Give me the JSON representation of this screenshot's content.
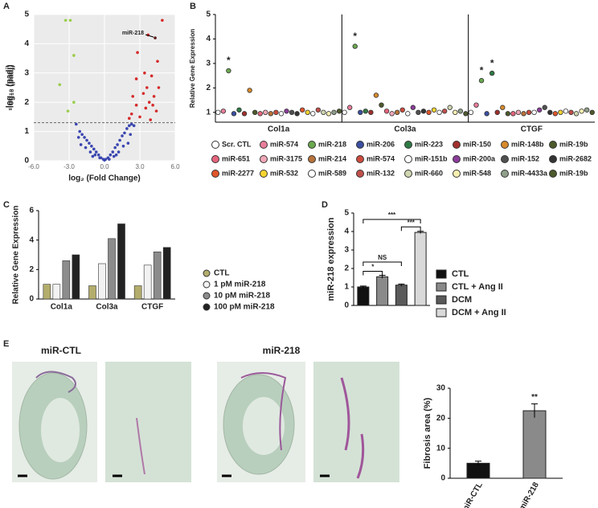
{
  "chart_data": [
    {
      "type": "scatter",
      "panel": "A",
      "xlabel": "log₂ (Fold Change)",
      "ylabel": "-log₁₀ (padj)",
      "xlim": [
        -6,
        6
      ],
      "xticks": [
        {
          "value": -6,
          "label": "-6.0"
        },
        {
          "value": -3,
          "label": "-3.0"
        },
        {
          "value": 0,
          "label": "0.0"
        },
        {
          "value": 3,
          "label": "3.0"
        },
        {
          "value": 6,
          "label": "6.0"
        }
      ],
      "ylim": [
        0,
        5
      ],
      "yticks": [
        0,
        1,
        2,
        3,
        4,
        5
      ],
      "grid": true,
      "hline": 1.3,
      "series": [
        {
          "color": "#3b46b0",
          "x": [
            -2.4,
            -2.1,
            -1.9,
            -1.7,
            -1.5,
            -1.3,
            -1.1,
            -0.9,
            -0.7,
            -0.5,
            -0.3,
            -0.1,
            0.1,
            0.3,
            0.5,
            0.7,
            0.9,
            1.1,
            1.3,
            1.5,
            1.7,
            1.9,
            2.1,
            2.3,
            2.5,
            2.0,
            1.6,
            1.2,
            0.8,
            0.4,
            0,
            -0.4,
            -0.8,
            -1.2,
            -1.6,
            -2.0,
            -1.0,
            1.0,
            2.2,
            -2.2
          ],
          "y": [
            1.25,
            1.0,
            0.9,
            0.8,
            0.7,
            0.6,
            0.5,
            0.4,
            0.3,
            0.2,
            0.1,
            0.05,
            0.05,
            0.1,
            0.2,
            0.3,
            0.45,
            0.55,
            0.7,
            0.85,
            0.95,
            1.1,
            1.2,
            1.25,
            1.2,
            0.6,
            0.5,
            0.3,
            0.15,
            0.05,
            0.02,
            0.1,
            0.2,
            0.3,
            0.45,
            0.55,
            0.15,
            0.2,
            0.9,
            0.8
          ]
        },
        {
          "color": "#9acd4a",
          "x": [
            -3.3,
            -2.9,
            -2.6,
            -3.8,
            -2.6,
            -3.1
          ],
          "y": [
            4.8,
            4.8,
            3.6,
            2.6,
            2.0,
            1.7
          ]
        },
        {
          "color": "#d62a2a",
          "x": [
            4.9,
            3.7,
            2.8,
            4.5,
            3.4,
            4.0,
            2.7,
            3.6,
            4.6,
            3.3,
            2.4,
            3.8,
            4.2,
            2.7,
            3.5,
            4.4,
            2.3,
            3.0,
            3.9,
            2.1,
            4.1
          ],
          "y": [
            4.8,
            4.3,
            3.7,
            3.4,
            3.0,
            2.9,
            2.8,
            2.5,
            2.5,
            2.3,
            2.2,
            2.0,
            2.2,
            1.9,
            1.8,
            1.7,
            1.6,
            1.5,
            1.4,
            1.45,
            1.9
          ]
        },
        {
          "color": "#5a1a1a",
          "x": [
            4.3
          ],
          "y": [
            4.2
          ]
        }
      ],
      "annotation": {
        "text": "miR-218",
        "x": 4.3,
        "y": 4.2
      }
    },
    {
      "type": "strip",
      "panel": "B",
      "ylabel": "Relative Gene Expression",
      "categories": [
        "Col1a",
        "Col3a",
        "CTGF"
      ],
      "ylim": [
        0.6,
        5
      ],
      "yticks": [
        1,
        2,
        3,
        4,
        5
      ],
      "series": [
        {
          "name": "Scr. CTL",
          "color": "#ffffff",
          "values": [
            1.0,
            1.0,
            1.0
          ]
        },
        {
          "name": "miR-574",
          "color": "#e87e9a",
          "values": [
            1.05,
            1.2,
            1.3
          ]
        },
        {
          "name": "miR-218",
          "color": "#6aa84f",
          "values": [
            2.7,
            3.7,
            2.3
          ]
        },
        {
          "name": "miR-206",
          "color": "#3a4fa0",
          "values": [
            0.95,
            1.0,
            0.95
          ]
        },
        {
          "name": "miR-223",
          "color": "#2f7a45",
          "values": [
            1.1,
            1.05,
            2.6
          ]
        },
        {
          "name": "miR-150",
          "color": "#a0302d",
          "values": [
            0.95,
            1.0,
            1.0
          ]
        },
        {
          "name": "miR-148b",
          "color": "#d88a2a",
          "values": [
            1.9,
            1.7,
            1.2
          ]
        },
        {
          "name": "miR-19b",
          "color": "#4c5a2c",
          "values": [
            1.0,
            1.3,
            0.95
          ]
        },
        {
          "name": "miR-651",
          "color": "#e5647c",
          "values": [
            0.95,
            1.05,
            0.95
          ]
        },
        {
          "name": "miR-3175",
          "color": "#f0a7b8",
          "values": [
            1.0,
            0.95,
            1.0
          ]
        },
        {
          "name": "miR-214",
          "color": "#b8733a",
          "values": [
            0.95,
            1.0,
            0.95
          ]
        },
        {
          "name": "miR-574",
          "color": "#cc4b3d",
          "values": [
            1.0,
            1.1,
            1.0
          ]
        },
        {
          "name": "miR-151b",
          "color": "#ffffff",
          "values": [
            0.95,
            0.95,
            1.0
          ]
        },
        {
          "name": "miR-200a",
          "color": "#8a3c9a",
          "values": [
            1.05,
            1.2,
            1.1
          ]
        },
        {
          "name": "miR-152",
          "color": "#505050",
          "values": [
            1.0,
            1.0,
            1.2
          ]
        },
        {
          "name": "miR-2682",
          "color": "#333333",
          "values": [
            0.95,
            1.05,
            1.0
          ]
        },
        {
          "name": "miR-2277",
          "color": "#e0552a",
          "values": [
            1.1,
            1.0,
            0.95
          ]
        },
        {
          "name": "miR-532",
          "color": "#f5d430",
          "values": [
            1.0,
            1.1,
            1.0
          ]
        },
        {
          "name": "miR-589",
          "color": "#ffffff",
          "values": [
            0.95,
            1.0,
            1.05
          ]
        },
        {
          "name": "miR-132",
          "color": "#c0504a",
          "values": [
            1.1,
            1.05,
            1.0
          ]
        },
        {
          "name": "miR-660",
          "color": "#cfd6b0",
          "values": [
            1.0,
            1.2,
            0.95
          ]
        },
        {
          "name": "miR-548",
          "color": "#f6efb0",
          "values": [
            0.95,
            1.0,
            1.05
          ]
        },
        {
          "name": "miR-4433a",
          "color": "#8f9f8a",
          "values": [
            1.0,
            1.05,
            1.1
          ]
        },
        {
          "name": "miR-19b",
          "color": "#4c5a2c",
          "values": [
            1.05,
            0.95,
            1.0
          ]
        }
      ],
      "annotations": [
        {
          "text": "*",
          "series": 2,
          "category": 0
        },
        {
          "text": "*",
          "series": 2,
          "category": 1
        },
        {
          "text": "*",
          "series": 2,
          "category": 2
        },
        {
          "text": "*",
          "series": 4,
          "category": 2
        }
      ]
    },
    {
      "type": "grouped-bar",
      "panel": "C",
      "ylabel": "Relative Gene Expression",
      "categories": [
        "Col1a",
        "Col3a",
        "CTGF"
      ],
      "ylim": [
        0,
        6
      ],
      "yticks": [
        0,
        2,
        4,
        6
      ],
      "series": [
        {
          "name": "CTL",
          "color": "#b3ad6c",
          "values": [
            1.0,
            0.9,
            0.9
          ]
        },
        {
          "name": "1 pM miR-218",
          "color": "#f2f2f2",
          "values": [
            1.0,
            2.4,
            2.3
          ]
        },
        {
          "name": "10 pM miR-218",
          "color": "#8c8c8c",
          "values": [
            2.6,
            4.1,
            3.2
          ]
        },
        {
          "name": "100 pM miR-218",
          "color": "#222222",
          "values": [
            3.0,
            5.1,
            3.5
          ]
        }
      ]
    },
    {
      "type": "bar",
      "panel": "D",
      "ylabel": "miR-218 expression",
      "categories": [
        "CTL",
        "CTL + Ang II",
        "DCM",
        "DCM + Ang II"
      ],
      "values": [
        1.0,
        1.55,
        1.1,
        3.95
      ],
      "errors": [
        0.05,
        0.08,
        0.06,
        0.06
      ],
      "colors": [
        "#111111",
        "#8a8a8a",
        "#5a5a5a",
        "#d9d9d9"
      ],
      "ylim": [
        0,
        5
      ],
      "yticks": [
        0,
        1,
        2,
        3,
        4,
        5
      ],
      "brackets": [
        {
          "text": "*",
          "from": 0,
          "to": 1,
          "y": 1.85
        },
        {
          "text": "NS",
          "from": 0,
          "to": 2,
          "y": 2.35
        },
        {
          "text": "***",
          "from": 2,
          "to": 3,
          "y": 4.25
        },
        {
          "text": "***",
          "from": 0,
          "to": 3,
          "y": 4.65
        }
      ]
    },
    {
      "type": "bar",
      "panel": "E",
      "ylabel": "Fibrosis area (%)",
      "categories": [
        "miR-CTL",
        "miR-218"
      ],
      "values": [
        5.0,
        22.5
      ],
      "errors": [
        0.7,
        2.3
      ],
      "colors": [
        "#111111",
        "#8a8a8a"
      ],
      "ylim": [
        0,
        30
      ],
      "yticks": [
        0,
        10,
        20,
        30
      ],
      "annotations": [
        {
          "text": "**",
          "index": 1
        }
      ],
      "image_titles": [
        "miR-CTL",
        "miR-218"
      ]
    }
  ]
}
